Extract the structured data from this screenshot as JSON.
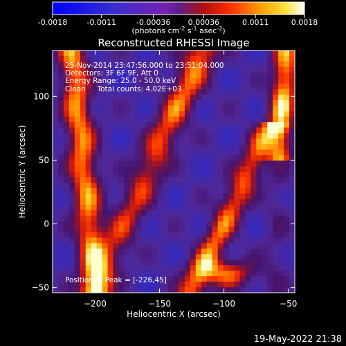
{
  "colorbar": {
    "ticks": [
      "-0.0018",
      "-0.0011",
      "-0.00036",
      "0.00036",
      "0.0011",
      "0.0018"
    ],
    "tick_values": [
      -0.0018,
      -0.0011,
      -0.00036,
      0.00036,
      0.0011,
      0.0018
    ],
    "range": [
      -0.0018,
      0.0018
    ],
    "units_prefix": "(photons cm",
    "units_exp1": "-2",
    "units_mid": " s",
    "units_exp2": "-1",
    "units_mid2": " asec",
    "units_exp3": "-2",
    "units_suffix": ")"
  },
  "chart_data": {
    "type": "heatmap",
    "title": "Reconstructed RHESSI Image",
    "xlabel": "Heliocentric X (arcsec)",
    "ylabel": "Heliocentric Y (arcsec)",
    "xlim": [
      -233,
      -45
    ],
    "ylim": [
      -54,
      136
    ],
    "x_ticks": [
      -200,
      -150,
      -100,
      -50
    ],
    "y_ticks": [
      -50,
      0,
      50,
      100
    ],
    "x_tick_labels": [
      "−200",
      "−150",
      "−100",
      "−50"
    ],
    "y_tick_labels": [
      "−50",
      "0",
      "50",
      "100"
    ],
    "colormap": "rainbow-like (blue-purple-red-orange-yellow-white)",
    "info_lines": [
      "25-Nov-2014 23:47:56.000 to 23:51:04.000",
      "Detectors: 3F 6F 9F, Att 0",
      "Energy Range: 25.0 - 50.0 keV",
      "Clean     Total counts: 4.02E+03"
    ],
    "peak_label": "Position of Peak = [-226,45]",
    "peak_position": [
      -226,
      45
    ]
  },
  "footer": {
    "timestamp": "19-May-2022 21:38"
  }
}
